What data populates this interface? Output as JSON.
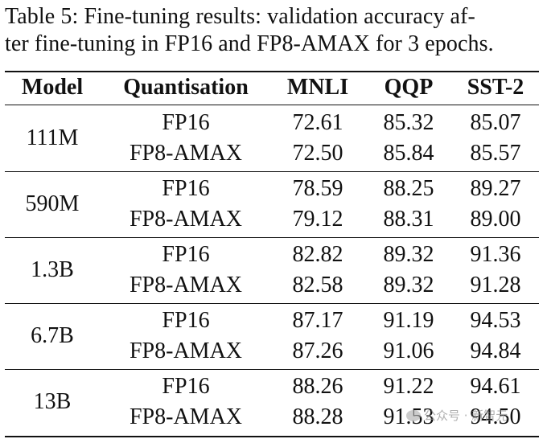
{
  "caption": {
    "line1": "Table 5: Fine-tuning results: validation accuracy af-",
    "line2": "ter fine-tuning in FP16 and FP8-AMAX for 3 epochs."
  },
  "table": {
    "headers": {
      "model": "Model",
      "quantisation": "Quantisation",
      "mnli": "MNLI",
      "qqp": "QQP",
      "sst2": "SST-2"
    },
    "groups": [
      {
        "model": "111M",
        "rows": [
          {
            "quant": "FP16",
            "mnli": "72.61",
            "qqp": "85.32",
            "sst2": "85.07"
          },
          {
            "quant": "FP8-AMAX",
            "mnli": "72.50",
            "qqp": "85.84",
            "sst2": "85.57"
          }
        ]
      },
      {
        "model": "590M",
        "rows": [
          {
            "quant": "FP16",
            "mnli": "78.59",
            "qqp": "88.25",
            "sst2": "89.27"
          },
          {
            "quant": "FP8-AMAX",
            "mnli": "79.12",
            "qqp": "88.31",
            "sst2": "89.00"
          }
        ]
      },
      {
        "model": "1.3B",
        "rows": [
          {
            "quant": "FP16",
            "mnli": "82.82",
            "qqp": "89.32",
            "sst2": "91.36"
          },
          {
            "quant": "FP8-AMAX",
            "mnli": "82.58",
            "qqp": "89.32",
            "sst2": "91.28"
          }
        ]
      },
      {
        "model": "6.7B",
        "rows": [
          {
            "quant": "FP16",
            "mnli": "87.17",
            "qqp": "91.19",
            "sst2": "94.53"
          },
          {
            "quant": "FP8-AMAX",
            "mnli": "87.26",
            "qqp": "91.06",
            "sst2": "94.84"
          }
        ]
      },
      {
        "model": "13B",
        "rows": [
          {
            "quant": "FP16",
            "mnli": "88.26",
            "qqp": "91.22",
            "sst2": "94.61"
          },
          {
            "quant": "FP8-AMAX",
            "mnli": "88.28",
            "qqp": "91.53",
            "sst2": "94.50"
          }
        ]
      }
    ]
  },
  "watermark": {
    "text": "公众号 · 新智元",
    "icon": "wechat-icon"
  }
}
